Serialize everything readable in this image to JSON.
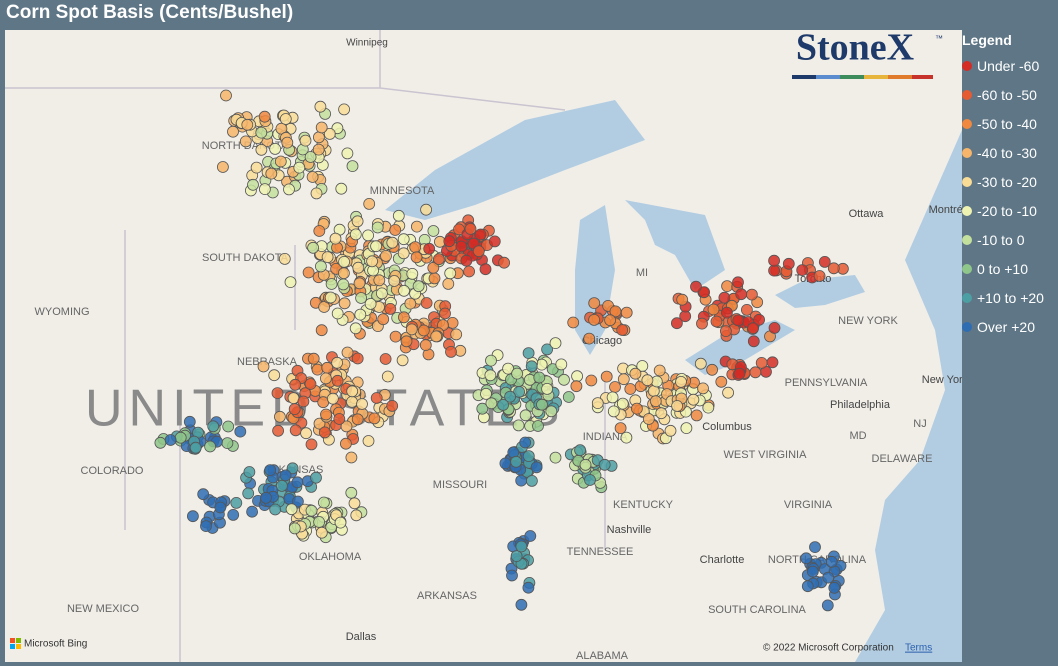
{
  "header": {
    "title": "Corn Spot Basis (Cents/Bushel)"
  },
  "legend": {
    "title": "Legend",
    "items": [
      {
        "label": "Under -60",
        "color": "#d42b25"
      },
      {
        "label": "-60 to -50",
        "color": "#e55b32"
      },
      {
        "label": "-50 to -40",
        "color": "#f0883f"
      },
      {
        "label": "-40 to -30",
        "color": "#f6b56a"
      },
      {
        "label": "-30 to -20",
        "color": "#f9dc96"
      },
      {
        "label": "-20 to -10",
        "color": "#eef3b2"
      },
      {
        "label": "-10 to 0",
        "color": "#c4e09d"
      },
      {
        "label": "0 to +10",
        "color": "#8fc68a"
      },
      {
        "label": "+10 to +20",
        "color": "#4c9fa3"
      },
      {
        "label": "Over +20",
        "color": "#2f6db3"
      }
    ]
  },
  "logo": {
    "text": "StoneX",
    "mark": "™"
  },
  "map_labels": [
    {
      "text": "Winnipeg"
    },
    {
      "text": "NORTH DAKOTA"
    },
    {
      "text": "MINNESOTA"
    },
    {
      "text": "SOUTH DAKOTA"
    },
    {
      "text": "WYOMING"
    },
    {
      "text": "NEBRASKA"
    },
    {
      "text": "UNITED STATES"
    },
    {
      "text": "COLORADO"
    },
    {
      "text": "KANSAS"
    },
    {
      "text": "MISSOURI"
    },
    {
      "text": "OKLAHOMA"
    },
    {
      "text": "ARKANSAS"
    },
    {
      "text": "NEW MEXICO"
    },
    {
      "text": "Dallas"
    },
    {
      "text": "TENNESSEE"
    },
    {
      "text": "Nashville"
    },
    {
      "text": "KENTUCKY"
    },
    {
      "text": "INDIANA"
    },
    {
      "text": "Chicago"
    },
    {
      "text": "Columbus"
    },
    {
      "text": "WEST VIRGINIA"
    },
    {
      "text": "VIRGINIA"
    },
    {
      "text": "PENNSYLVANIA"
    },
    {
      "text": "Philadelphia"
    },
    {
      "text": "MD"
    },
    {
      "text": "NJ"
    },
    {
      "text": "DELAWARE"
    },
    {
      "text": "NEW YORK"
    },
    {
      "text": "Toronto"
    },
    {
      "text": "Ottawa"
    },
    {
      "text": "Montréal"
    },
    {
      "text": "New York"
    },
    {
      "text": "NORTH CAROLINA"
    },
    {
      "text": "SOUTH CAROLINA"
    },
    {
      "text": "Charlotte"
    },
    {
      "text": "ALABAMA"
    },
    {
      "text": "MI"
    }
  ],
  "attribution": {
    "copyright": "© 2022 Microsoft Corporation",
    "terms": "Terms",
    "provider": "Microsoft Bing"
  }
}
